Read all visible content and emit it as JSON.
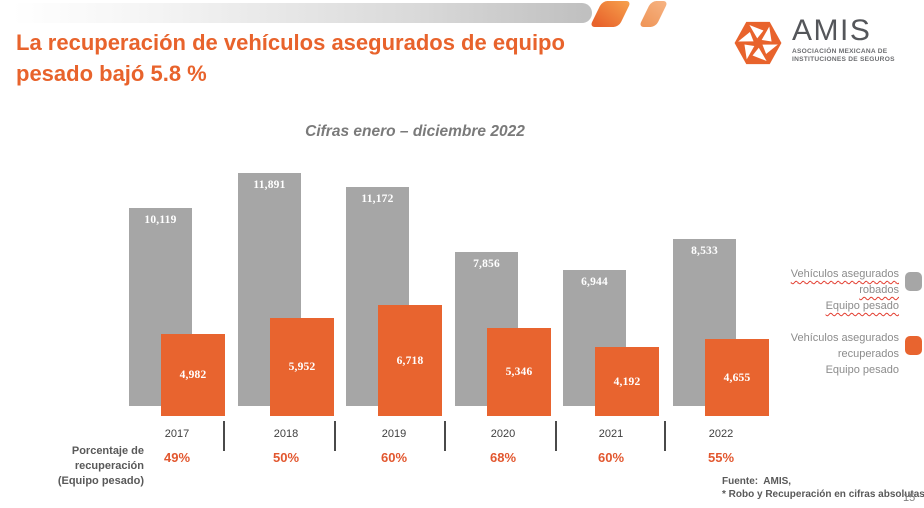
{
  "colors": {
    "accent_orange": "#E8632C",
    "bar_orange": "#E8642F",
    "bar_gray": "#A6A6A6",
    "percent_orange": "#E2572F"
  },
  "header": {
    "title_line1": "La recuperación de vehículos asegurados de equipo",
    "title_line2": "pesado bajó 5.8 %"
  },
  "logo": {
    "name": "AMIS",
    "tagline_line1": "ASOCIACIÓN  MEXICANA  DE",
    "tagline_line2": "INSTITUCIONES DE SEGUROS"
  },
  "chart_data": {
    "type": "bar",
    "title": "Cifras enero – diciembre 2022",
    "categories": [
      "2017",
      "2018",
      "2019",
      "2020",
      "2021",
      "2022"
    ],
    "series": [
      {
        "name": "Vehículos asegurados robados Equipo pesado",
        "color": "#A6A6A6",
        "values": [
          10119,
          11891,
          11172,
          7856,
          6944,
          8533
        ],
        "labels": [
          "10,119",
          "11,891",
          "11,172",
          "7,856",
          "6,944",
          "8,533"
        ]
      },
      {
        "name": "Vehículos asegurados recuperados Equipo pesado",
        "color": "#E8642F",
        "values": [
          4982,
          5952,
          6718,
          5346,
          4192,
          4655
        ],
        "labels": [
          "4,982",
          "5,952",
          "6,718",
          "5,346",
          "4,192",
          "4,655"
        ]
      }
    ],
    "recovery_percentages": [
      "49%",
      "50%",
      "60%",
      "68%",
      "60%",
      "55%"
    ],
    "axis_label_line1": "Porcentaje de recuperación",
    "axis_label_line2": "(Equipo pesado)",
    "legend": [
      {
        "lines": [
          "Vehículos asegurados",
          "robados",
          "Equipo pesado"
        ]
      },
      {
        "lines": [
          "Vehículos asegurados",
          "recuperados",
          "Equipo pesado"
        ]
      }
    ],
    "legend_position": "right",
    "grid": false,
    "value_axis_visible": false
  },
  "footer": {
    "source_line1": "Fuente:  AMIS,",
    "source_line2": "* Robo y Recuperación en cifras absolutas",
    "page_number": "15"
  }
}
